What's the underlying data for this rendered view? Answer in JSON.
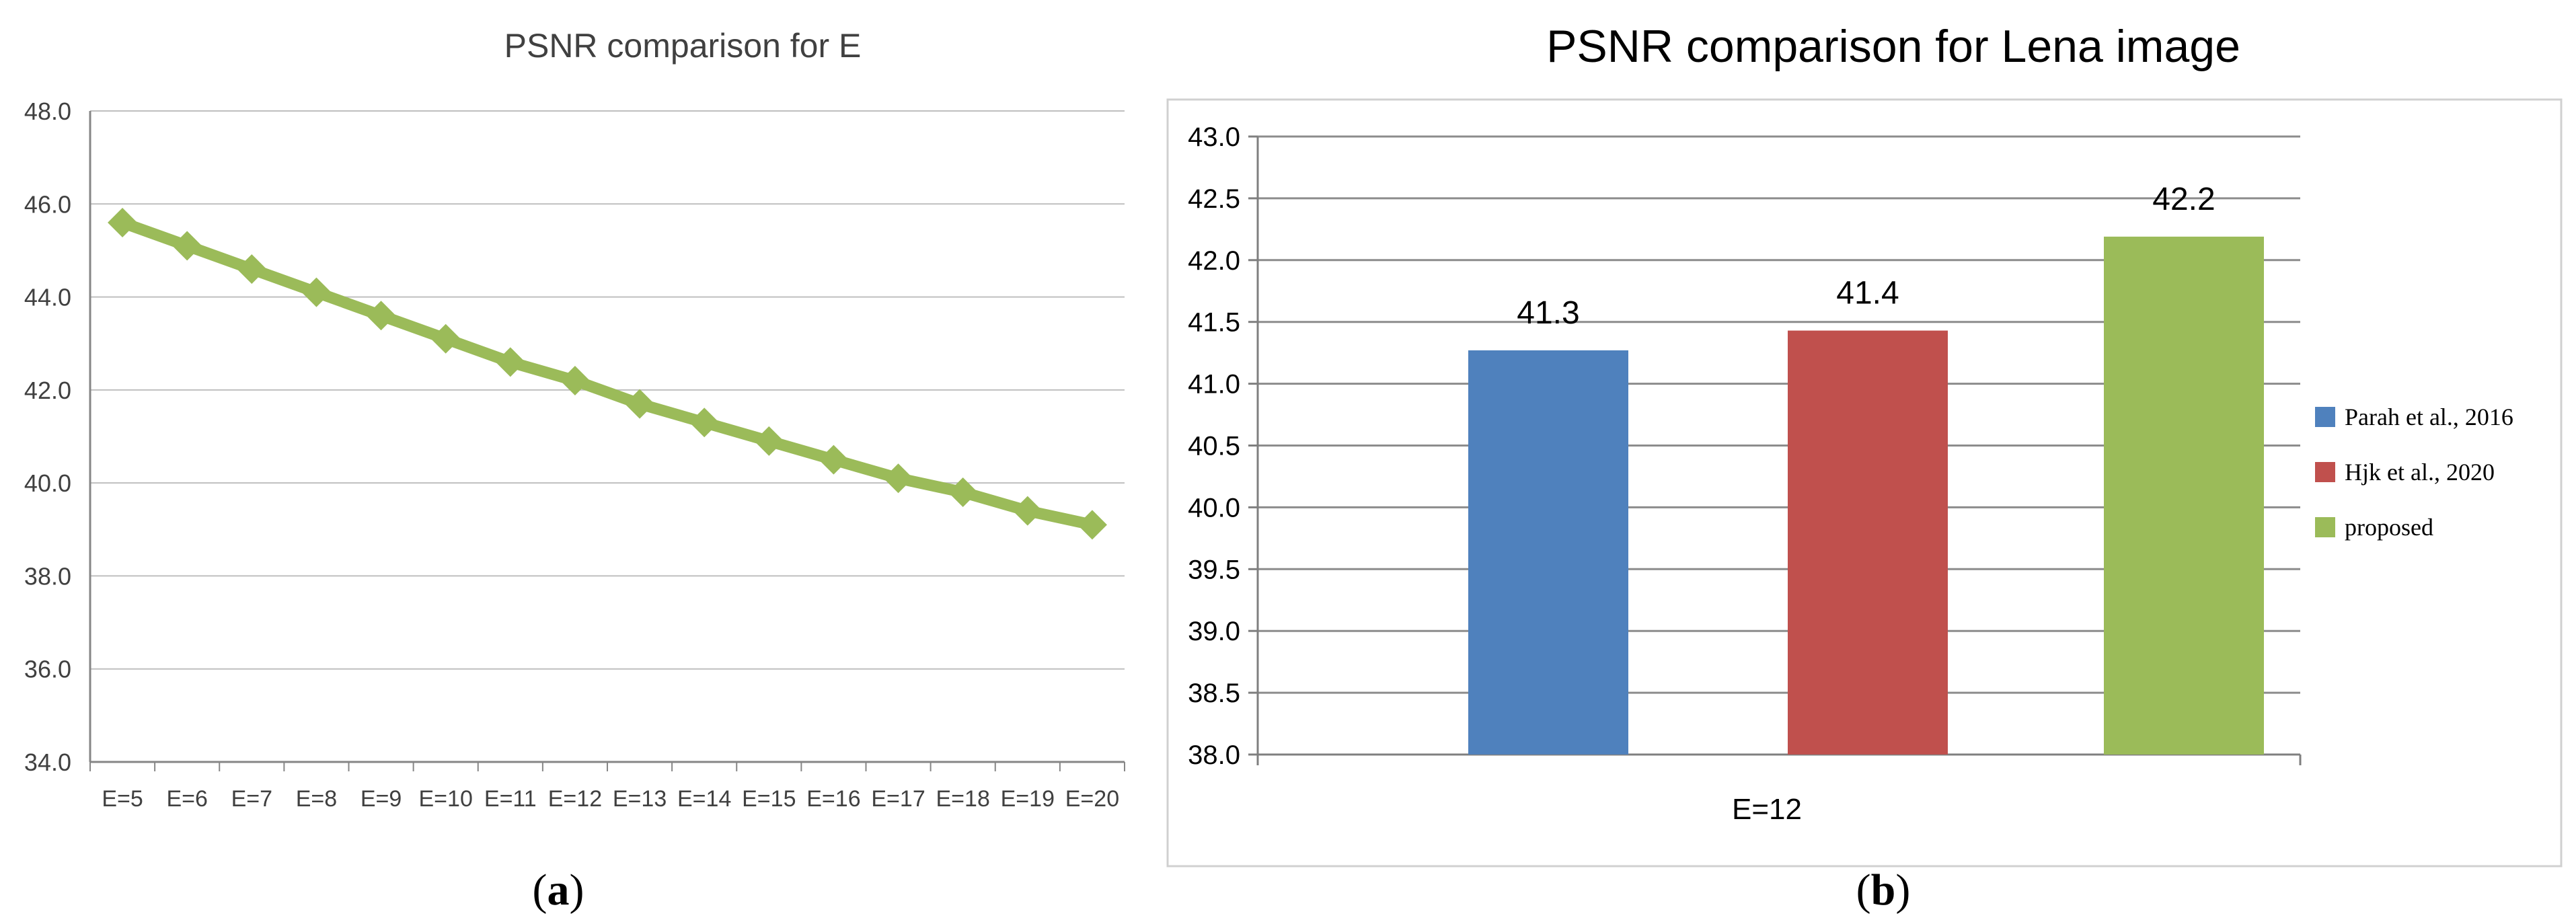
{
  "panels": [
    {
      "caption_open": "(",
      "caption_letter": "a",
      "caption_close": ")",
      "chart_data": {
        "type": "line",
        "title": "PSNR comparison for E",
        "xlabel": "",
        "ylabel": "",
        "categories": [
          "E=5",
          "E=6",
          "E=7",
          "E=8",
          "E=9",
          "E=10",
          "E=11",
          "E=12",
          "E=13",
          "E=14",
          "E=15",
          "E=16",
          "E=17",
          "E=18",
          "E=19",
          "E=20"
        ],
        "series": [
          {
            "name": "",
            "color": "#9bbb59",
            "values": [
              45.6,
              45.1,
              44.6,
              44.1,
              43.6,
              43.1,
              42.6,
              42.2,
              41.7,
              41.3,
              40.9,
              40.5,
              40.1,
              39.8,
              39.4,
              39.1
            ]
          }
        ],
        "ylim": [
          34.0,
          48.0
        ],
        "yticks": [
          "34.0",
          "36.0",
          "38.0",
          "40.0",
          "42.0",
          "44.0",
          "46.0",
          "48.0"
        ],
        "grid": true,
        "legend": "none"
      }
    },
    {
      "caption_open": "(",
      "caption_letter": "b",
      "caption_close": ")",
      "chart_data": {
        "type": "bar",
        "title": "PSNR comparison for Lena image",
        "xlabel": "",
        "ylabel": "",
        "categories": [
          "E=12"
        ],
        "series": [
          {
            "name": "Parah et al., 2016",
            "color": "#4f81bd",
            "values": [
              41.27
            ],
            "label": "41.3"
          },
          {
            "name": "Hjk et al., 2020",
            "color": "#c0504d",
            "values": [
              41.43
            ],
            "label": "41.4"
          },
          {
            "name": "proposed",
            "color": "#9bbb59",
            "values": [
              42.19
            ],
            "label": "42.2"
          }
        ],
        "ylim": [
          38.0,
          43.0
        ],
        "yticks": [
          "38.0",
          "38.5",
          "39.0",
          "39.5",
          "40.0",
          "40.5",
          "41.0",
          "41.5",
          "42.0",
          "42.5",
          "43.0"
        ],
        "grid": true,
        "legend": "right"
      }
    }
  ]
}
